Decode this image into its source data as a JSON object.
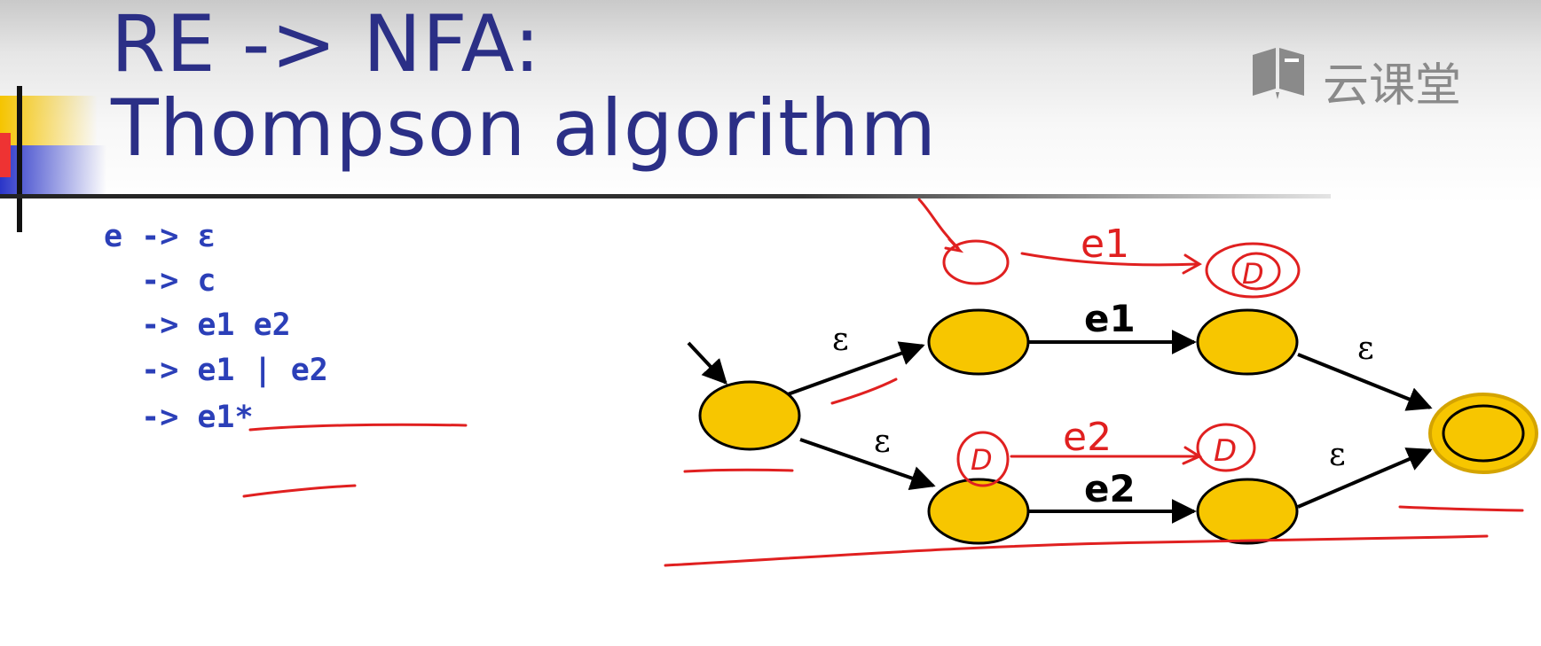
{
  "title": {
    "line1": "RE -> NFA:",
    "line2": "Thompson algorithm"
  },
  "logo": {
    "text": "云课堂",
    "icon": "book-icon"
  },
  "grammar": {
    "lines": [
      "e -> ε",
      "  -> c",
      "  -> e1 e2",
      "  -> e1 | e2",
      "  -> e1*"
    ]
  },
  "diagram": {
    "edge_labels": {
      "start_to_top": "ε",
      "start_to_bottom": "ε",
      "top": "e1",
      "bottom": "e2",
      "top_to_final": "ε",
      "bottom_to_final": "ε"
    },
    "node_fill": "#f7c600",
    "accept_ring": "#d4a400"
  },
  "annotations": {
    "color": "#e02020",
    "handwritten_labels": [
      "e1",
      "e2"
    ]
  },
  "colors": {
    "title": "#2b2f86",
    "grammar": "#2b3fb8"
  }
}
